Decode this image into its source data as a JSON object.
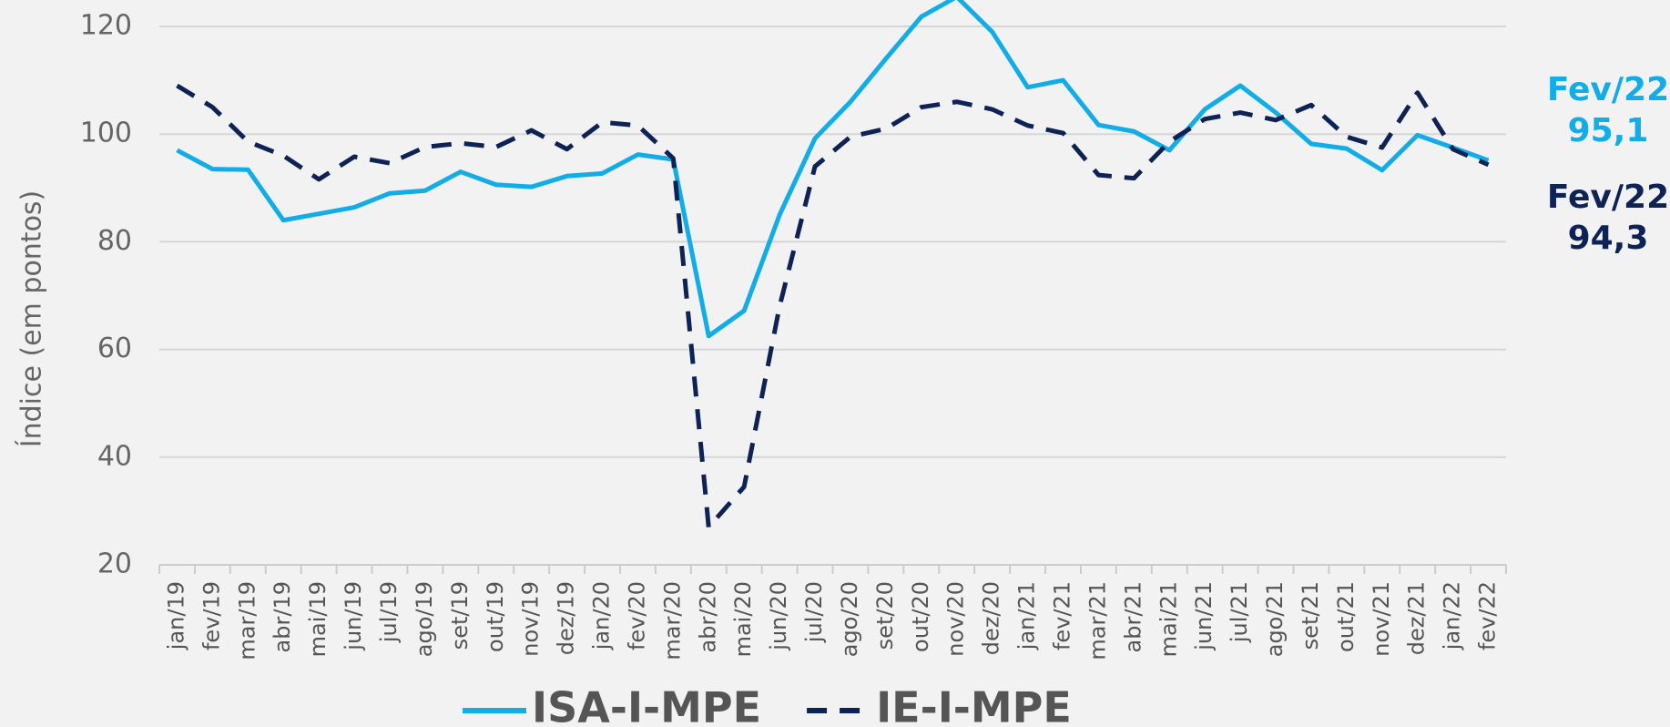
{
  "chart_data": {
    "type": "line",
    "y_label": "Índice (em pontos)",
    "categories": [
      "jan/19",
      "fev/19",
      "mar/19",
      "abr/19",
      "mai/19",
      "jun/19",
      "jul/19",
      "ago/19",
      "set/19",
      "out/19",
      "nov/19",
      "dez/19",
      "jan/20",
      "fev/20",
      "mar/20",
      "abr/20",
      "mai/20",
      "jun/20",
      "jul/20",
      "ago/20",
      "set/20",
      "out/20",
      "nov/20",
      "dez/20",
      "jan/21",
      "fev/21",
      "mar/21",
      "abr/21",
      "mai/21",
      "jun/21",
      "jul/21",
      "ago/21",
      "set/21",
      "out/21",
      "nov/21",
      "dez/21",
      "jan/22",
      "fev/22"
    ],
    "series": [
      {
        "name": "ISA-I-MPE",
        "color": "#12ace6",
        "dashed": false,
        "values": [
          97,
          93.5,
          93.4,
          84,
          85.2,
          86.4,
          89,
          89.5,
          93,
          90.6,
          90.2,
          92.2,
          92.7,
          96.2,
          95.3,
          62.5,
          67.2,
          85,
          99.2,
          106,
          114,
          121.8,
          125.5,
          119,
          108.7,
          110,
          101.7,
          100.5,
          97,
          104.6,
          109,
          104,
          98.2,
          97.3,
          93.3,
          99.8,
          97.5,
          95.1
        ]
      },
      {
        "name": "IE-I-MPE",
        "color": "#0d2356",
        "dashed": true,
        "values": [
          109,
          105,
          98.6,
          96,
          91.6,
          95.8,
          94.6,
          97.6,
          98.3,
          97.6,
          100.7,
          97.2,
          102.2,
          101.6,
          95.5,
          27,
          34.5,
          68,
          94,
          99.5,
          101,
          105,
          106,
          104.6,
          101.6,
          100.2,
          92.4,
          91.8,
          98.6,
          102.8,
          104,
          102.6,
          105.4,
          99.5,
          97.5,
          107.7,
          97.2,
          94.3
        ]
      }
    ],
    "annotations": [
      {
        "label": "Fev/22",
        "value": "95,1",
        "color": "#12ace6"
      },
      {
        "label": "Fev/22",
        "value": "94,3",
        "color": "#0d2356"
      }
    ],
    "ylim": [
      20,
      120
    ],
    "yticks": [
      20,
      40,
      60,
      80,
      100,
      120
    ],
    "grid": true
  }
}
